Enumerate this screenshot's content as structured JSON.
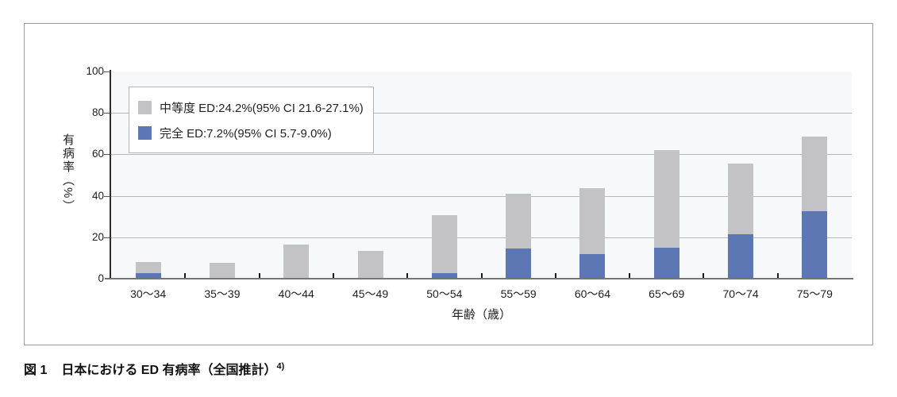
{
  "figure": {
    "caption": {
      "prefix": "図 1",
      "text": "日本における ED 有病率（全国推計）",
      "superscript": "4)"
    }
  },
  "chart_data": {
    "type": "bar",
    "stacked": true,
    "title": "",
    "xlabel": "年齢（歳）",
    "ylabel": "有病率（%）",
    "ylim": [
      0,
      100
    ],
    "yticks": [
      0,
      20,
      40,
      60,
      80,
      100
    ],
    "grid": true,
    "legend_position": "top-left",
    "categories": [
      "30〜34",
      "35〜39",
      "40〜44",
      "45〜49",
      "50〜54",
      "55〜59",
      "60〜64",
      "65〜69",
      "70〜74",
      "75〜79"
    ],
    "series": [
      {
        "name": "完全ED",
        "legend_label": "完全 ED:7.2%(95% CI 5.7-9.0%)",
        "color": "#5d77b5",
        "values": [
          2.5,
          0,
          0,
          0,
          2.5,
          14.5,
          12,
          15,
          21.5,
          32.5
        ]
      },
      {
        "name": "中等度ED",
        "legend_label": "中等度 ED:24.2%(95% CI 21.6-27.1%)",
        "color": "#c3c3c5",
        "values": [
          5.5,
          7.5,
          16.5,
          13.5,
          28,
          26.5,
          31.5,
          47,
          34,
          36
        ]
      }
    ],
    "totals": [
      8,
      7.5,
      16.5,
      13.5,
      30.5,
      41,
      43.5,
      62,
      55.5,
      68.5
    ],
    "legend_order": [
      "中等度ED",
      "完全ED"
    ]
  }
}
